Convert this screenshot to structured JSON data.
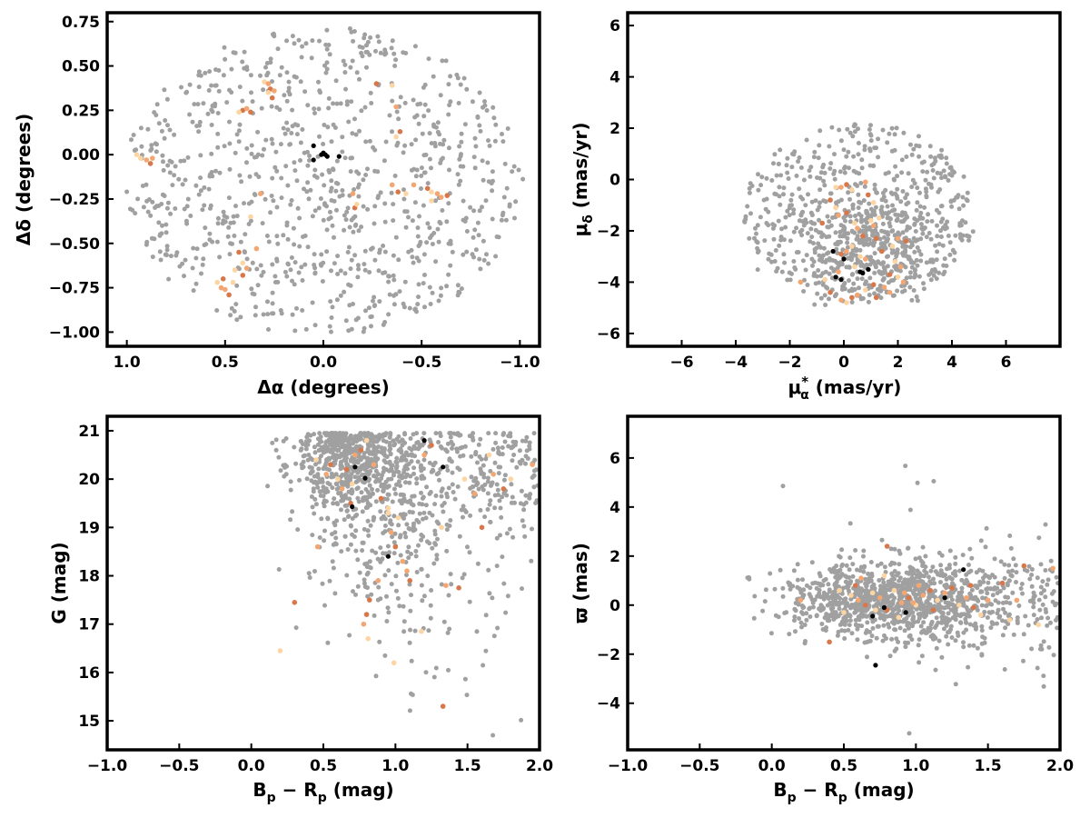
{
  "colors": {
    "field": "#a0a0a0",
    "member_light": "#fdd5a2",
    "member_mid": "#f4a672",
    "member_dark": "#d7774a",
    "core": "#000000"
  },
  "chart_data": [
    {
      "type": "scatter",
      "id": "sky",
      "xlabel": "Δα (degrees)",
      "ylabel": "Δδ (degrees)",
      "xlim": [
        1.1,
        -1.1
      ],
      "ylim": [
        -1.08,
        0.8
      ],
      "xticks": [
        1.0,
        0.5,
        0.0,
        -0.5,
        -1.0
      ],
      "xtick_labels": [
        "1.0",
        "0.5",
        "0.0",
        "−0.5",
        "−1.0"
      ],
      "yticks": [
        0.75,
        0.5,
        0.25,
        0.0,
        -0.25,
        -0.5,
        -0.75,
        -1.0
      ],
      "ytick_labels": [
        "0.75",
        "0.50",
        "0.25",
        "0.00",
        "−0.25",
        "−0.50",
        "−0.75",
        "−1.00"
      ],
      "field": {
        "n": 900,
        "ellipse_center": [
          0.0,
          -0.15
        ],
        "ellipse_radii": [
          1.02,
          0.87
        ]
      },
      "members": [
        [
          0.93,
          -0.02
        ],
        [
          0.9,
          -0.03
        ],
        [
          0.88,
          -0.05
        ],
        [
          0.95,
          0.0
        ],
        [
          0.87,
          -0.02
        ],
        [
          0.41,
          0.25
        ],
        [
          0.43,
          0.24
        ],
        [
          0.39,
          0.26
        ],
        [
          0.37,
          0.24
        ],
        [
          0.3,
          0.41
        ],
        [
          0.28,
          0.4
        ],
        [
          0.27,
          0.37
        ],
        [
          0.28,
          0.35
        ],
        [
          0.25,
          0.36
        ],
        [
          0.26,
          0.32
        ],
        [
          0.37,
          -0.35
        ],
        [
          0.32,
          -0.22
        ],
        [
          0.43,
          -0.55
        ],
        [
          0.41,
          -0.61
        ],
        [
          0.39,
          -0.64
        ],
        [
          0.41,
          -0.68
        ],
        [
          0.45,
          -0.65
        ],
        [
          0.34,
          -0.53
        ],
        [
          0.51,
          -0.7
        ],
        [
          0.54,
          -0.72
        ],
        [
          0.5,
          -0.76
        ],
        [
          0.48,
          -0.79
        ],
        [
          0.46,
          -0.72
        ],
        [
          0.52,
          -0.75
        ],
        [
          -0.27,
          0.4
        ],
        [
          -0.35,
          0.39
        ],
        [
          -0.37,
          0.27
        ],
        [
          -0.39,
          0.13
        ],
        [
          -0.37,
          0.1
        ],
        [
          -0.35,
          -0.17
        ],
        [
          -0.38,
          -0.21
        ],
        [
          -0.42,
          -0.22
        ],
        [
          -0.46,
          -0.17
        ],
        [
          -0.53,
          -0.19
        ],
        [
          -0.55,
          -0.21
        ],
        [
          -0.58,
          -0.22
        ],
        [
          -0.63,
          -0.23
        ],
        [
          -0.55,
          -0.26
        ],
        [
          -0.15,
          -0.22
        ],
        [
          -0.16,
          -0.3
        ],
        [
          -0.17,
          -0.28
        ],
        [
          -0.6,
          -0.24
        ]
      ],
      "core": [
        [
          0.05,
          0.05
        ],
        [
          0.05,
          -0.03
        ],
        [
          0.01,
          0.0
        ],
        [
          -0.01,
          0.0
        ],
        [
          -0.02,
          -0.01
        ],
        [
          0.0,
          0.01
        ],
        [
          -0.08,
          -0.01
        ]
      ]
    },
    {
      "type": "scatter",
      "id": "proper-motion",
      "xlabel": "μα* (mas/yr)",
      "ylabel": "μδ (mas/yr)",
      "xlim": [
        -8,
        8
      ],
      "ylim": [
        -6.5,
        6.5
      ],
      "xticks": [
        -6,
        -4,
        -2,
        0,
        2,
        4,
        6
      ],
      "xtick_labels": [
        "−6",
        "−4",
        "−2",
        "0",
        "2",
        "4",
        "6"
      ],
      "yticks": [
        6,
        4,
        2,
        0,
        -2,
        -4,
        -6
      ],
      "ytick_labels": [
        "6",
        "4",
        "2",
        "0",
        "−2",
        "−4",
        "−6"
      ],
      "field": {
        "n": 900,
        "ellipse_center": [
          0.6,
          -1.3
        ],
        "ellipse_radii": [
          4.3,
          3.5
        ],
        "ymin": -4.9
      },
      "members": [
        [
          -0.3,
          -0.3
        ],
        [
          -0.1,
          -0.3
        ],
        [
          0.1,
          -0.2
        ],
        [
          0.3,
          -0.4
        ],
        [
          0.8,
          -0.1
        ],
        [
          -0.5,
          -0.8
        ],
        [
          -0.3,
          -1.1
        ],
        [
          -0.2,
          -1.4
        ],
        [
          0.1,
          -1.3
        ],
        [
          0.4,
          -1.7
        ],
        [
          0.5,
          -1.9
        ],
        [
          0.7,
          -2.2
        ],
        [
          1.0,
          -1.6
        ],
        [
          1.1,
          -1.8
        ],
        [
          1.2,
          -2.3
        ],
        [
          0.3,
          -2.6
        ],
        [
          0.1,
          -2.8
        ],
        [
          -0.1,
          -2.9
        ],
        [
          0.6,
          -3.0
        ],
        [
          0.8,
          -3.1
        ],
        [
          1.4,
          -2.8
        ],
        [
          1.8,
          -2.6
        ],
        [
          2.0,
          -2.3
        ],
        [
          2.3,
          -2.4
        ],
        [
          1.9,
          -3.2
        ],
        [
          2.1,
          -3.4
        ],
        [
          1.7,
          -3.7
        ],
        [
          2.0,
          -3.8
        ],
        [
          1.5,
          -4.2
        ],
        [
          1.1,
          -4.1
        ],
        [
          0.8,
          -4.3
        ],
        [
          0.5,
          -4.5
        ],
        [
          0.3,
          -4.6
        ],
        [
          0.1,
          -4.8
        ],
        [
          -0.1,
          -4.7
        ],
        [
          -0.5,
          -4.4
        ],
        [
          -0.7,
          -3.9
        ],
        [
          -1.6,
          -4.0
        ],
        [
          -0.8,
          -1.7
        ],
        [
          1.3,
          -1.5
        ],
        [
          1.7,
          -4.4
        ],
        [
          0.9,
          -0.6
        ],
        [
          1.1,
          -0.9
        ],
        [
          2.2,
          -4.0
        ],
        [
          1.2,
          -4.6
        ],
        [
          0.4,
          -3.4
        ],
        [
          -0.2,
          -3.6
        ]
      ],
      "core": [
        [
          -0.4,
          -2.8
        ],
        [
          0.0,
          -3.1
        ],
        [
          0.6,
          -3.6
        ],
        [
          0.9,
          -3.5
        ],
        [
          -0.3,
          -3.8
        ],
        [
          -0.1,
          -3.9
        ],
        [
          0.7,
          -3.65
        ]
      ]
    },
    {
      "type": "scatter",
      "id": "cmd",
      "xlabel": "Bp − Rp (mag)",
      "ylabel": "G (mag)",
      "xlim": [
        -1.0,
        2.0
      ],
      "ylim": [
        14.4,
        21.3
      ],
      "xticks": [
        -1.0,
        -0.5,
        0.0,
        0.5,
        1.0,
        1.5,
        2.0
      ],
      "xtick_labels": [
        "−1.0",
        "−0.5",
        "0.0",
        "0.5",
        "1.0",
        "1.5",
        "2.0"
      ],
      "yticks": [
        15,
        16,
        17,
        18,
        19,
        20,
        21
      ],
      "ytick_labels": [
        "15",
        "16",
        "17",
        "18",
        "19",
        "20",
        "21"
      ],
      "field": {
        "n": 1200
      },
      "members": [
        [
          0.45,
          20.4
        ],
        [
          0.52,
          20.1
        ],
        [
          0.55,
          20.3
        ],
        [
          0.6,
          20.0
        ],
        [
          0.63,
          19.8
        ],
        [
          0.66,
          20.2
        ],
        [
          0.7,
          19.9
        ],
        [
          0.72,
          20.5
        ],
        [
          0.76,
          20.6
        ],
        [
          0.8,
          20.8
        ],
        [
          0.85,
          20.3
        ],
        [
          0.9,
          19.6
        ],
        [
          0.95,
          19.3
        ],
        [
          0.97,
          18.9
        ],
        [
          1.0,
          18.6
        ],
        [
          1.02,
          19.2
        ],
        [
          0.78,
          17.0
        ],
        [
          0.8,
          17.2
        ],
        [
          0.81,
          16.7
        ],
        [
          0.88,
          17.9
        ],
        [
          0.82,
          17.5
        ],
        [
          0.99,
          16.2
        ],
        [
          1.05,
          18.3
        ],
        [
          1.1,
          17.9
        ],
        [
          1.18,
          16.85
        ],
        [
          1.2,
          20.5
        ],
        [
          1.25,
          20.7
        ],
        [
          1.32,
          19.0
        ],
        [
          1.35,
          17.8
        ],
        [
          1.44,
          17.75
        ],
        [
          1.48,
          20.0
        ],
        [
          1.55,
          19.7
        ],
        [
          1.6,
          19.0
        ],
        [
          1.65,
          20.5
        ],
        [
          1.68,
          20.1
        ],
        [
          1.75,
          19.8
        ],
        [
          1.8,
          20.0
        ],
        [
          1.95,
          20.3
        ],
        [
          0.3,
          17.45
        ],
        [
          0.2,
          16.45
        ],
        [
          0.46,
          18.6
        ],
        [
          1.33,
          15.3
        ],
        [
          0.95,
          19.4
        ],
        [
          1.08,
          18.1
        ],
        [
          0.69,
          19.5
        ]
      ],
      "core": [
        [
          0.72,
          20.25
        ],
        [
          0.79,
          20.02
        ],
        [
          0.7,
          19.43
        ],
        [
          0.95,
          18.4
        ],
        [
          1.2,
          20.8
        ],
        [
          1.33,
          20.25
        ]
      ]
    },
    {
      "type": "scatter",
      "id": "parallax",
      "xlabel": "Bp − Rp (mag)",
      "ylabel": "ϖ (mas)",
      "xlim": [
        -1.0,
        2.0
      ],
      "ylim": [
        -5.9,
        7.7
      ],
      "xticks": [
        -1.0,
        -0.5,
        0.0,
        0.5,
        1.0,
        1.5,
        2.0
      ],
      "xtick_labels": [
        "−1.0",
        "−0.5",
        "0.0",
        "0.5",
        "1.0",
        "1.5",
        "2.0"
      ],
      "yticks": [
        6,
        4,
        2,
        0,
        -2,
        -4
      ],
      "ytick_labels": [
        "6",
        "4",
        "2",
        "0",
        "−2",
        "−4"
      ],
      "field": {
        "n": 1200
      },
      "members": [
        [
          0.55,
          0.4
        ],
        [
          0.6,
          0.2
        ],
        [
          0.65,
          0.0
        ],
        [
          0.7,
          0.5
        ],
        [
          0.75,
          0.3
        ],
        [
          0.8,
          -0.2
        ],
        [
          0.85,
          0.6
        ],
        [
          0.9,
          0.1
        ],
        [
          0.95,
          0.3
        ],
        [
          1.0,
          0.0
        ],
        [
          1.05,
          0.4
        ],
        [
          1.1,
          0.6
        ],
        [
          1.15,
          0.2
        ],
        [
          1.2,
          0.5
        ],
        [
          1.25,
          0.7
        ],
        [
          1.3,
          0.0
        ],
        [
          1.35,
          0.3
        ],
        [
          1.4,
          -0.1
        ],
        [
          1.45,
          -0.4
        ],
        [
          1.5,
          0.2
        ],
        [
          1.6,
          0.9
        ],
        [
          1.65,
          -0.6
        ],
        [
          1.7,
          0.2
        ],
        [
          1.75,
          1.6
        ],
        [
          1.85,
          -0.8
        ],
        [
          1.95,
          1.5
        ],
        [
          0.4,
          -1.5
        ],
        [
          0.5,
          -0.3
        ],
        [
          0.62,
          1.1
        ],
        [
          0.8,
          2.4
        ],
        [
          0.88,
          -0.5
        ],
        [
          1.02,
          0.8
        ],
        [
          0.58,
          0.8
        ],
        [
          0.72,
          -0.2
        ],
        [
          0.98,
          0.1
        ],
        [
          1.12,
          -0.2
        ],
        [
          0.47,
          0.6
        ],
        [
          0.2,
          0.2
        ],
        [
          1.38,
          0.8
        ],
        [
          0.78,
          1.2
        ],
        [
          0.92,
          0.5
        ]
      ],
      "core": [
        [
          0.7,
          -0.45
        ],
        [
          0.78,
          -0.1
        ],
        [
          0.93,
          -0.3
        ],
        [
          1.2,
          0.3
        ],
        [
          1.33,
          1.45
        ],
        [
          0.72,
          -2.45
        ]
      ]
    }
  ]
}
